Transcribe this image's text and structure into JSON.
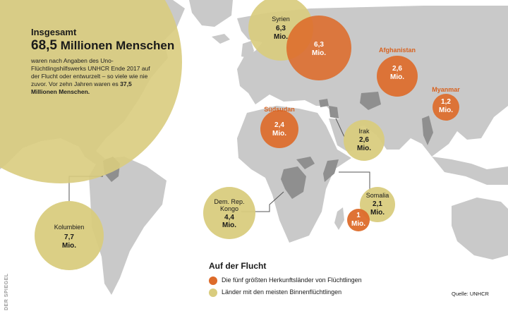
{
  "summary": {
    "lead": "Insgesamt",
    "number": "68,5",
    "unit_text": "Millionen Menschen",
    "body": "waren nach Angaben des Uno-Flüchtlingshilfswerks UNHCR Ende 2017 auf der Flucht oder entwurzelt – so viele wie nie zuvor. Vor zehn Jahren waren es",
    "body_bold": "37,5 Millionen Menschen."
  },
  "countries": [
    {
      "id": "syrien-idp",
      "name": "Syrien",
      "value": "6,3",
      "unit": "Mio.",
      "category": "binnen"
    },
    {
      "id": "syrien-refugees",
      "name": "",
      "value": "6,3",
      "unit": "Mio.",
      "category": "herkunft"
    },
    {
      "id": "afghanistan",
      "name": "Afghanistan",
      "value": "2,6",
      "unit": "Mio.",
      "category": "herkunft"
    },
    {
      "id": "myanmar",
      "name": "Myanmar",
      "value": "1,2",
      "unit": "Mio.",
      "category": "herkunft"
    },
    {
      "id": "suedsudan",
      "name": "Südsudan",
      "value": "2,4",
      "unit": "Mio.",
      "category": "herkunft"
    },
    {
      "id": "irak",
      "name": "Irak",
      "value": "2,6",
      "unit": "Mio.",
      "category": "binnen"
    },
    {
      "id": "kongo",
      "name": "Dem. Rep. Kongo",
      "value": "4,4",
      "unit": "Mio.",
      "category": "binnen"
    },
    {
      "id": "kolumbien",
      "name": "Kolumbien",
      "value": "7,7",
      "unit": "Mio.",
      "category": "binnen"
    },
    {
      "id": "somalia-idp",
      "name": "Somalia",
      "value": "2,1",
      "unit": "Mio.",
      "category": "binnen"
    },
    {
      "id": "somalia-refugees",
      "name": "",
      "value": "1",
      "unit": "Mio.",
      "category": "herkunft"
    }
  ],
  "legend": {
    "title": "Auf der Flucht",
    "items": [
      {
        "category": "herkunft",
        "label": "Die fünf größten Herkunftsländer von Flüchtlingen"
      },
      {
        "category": "binnen",
        "label": "Länder mit den meisten Binnenflüchtlingen"
      }
    ]
  },
  "colors": {
    "herkunft": "#dd6b2a",
    "binnen": "#d9cc7e",
    "land": "#c9c9c9",
    "highlight": "#8f8f8f",
    "label_dark": "#1a1a1a",
    "label_orange": "#d8621f"
  },
  "source": "Quelle: UNHCR",
  "credit": "DER SPIEGEL"
}
